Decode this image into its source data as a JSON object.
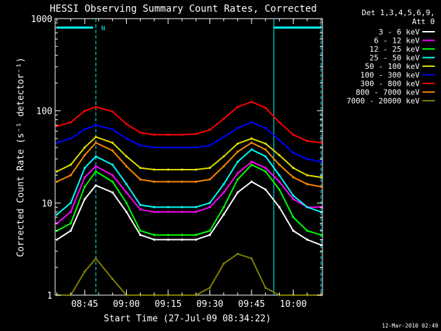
{
  "chart_data": {
    "type": "line",
    "title": "HESSI Observing Summary Count Rates, Corrected",
    "xlabel": "Start Time (27-Jul-09 08:34:22)",
    "ylabel": "Corrected Count Rate (s⁻¹ detector⁻¹)",
    "yscale": "log",
    "ylim": [
      1,
      1000
    ],
    "xlim": [
      "08:34:22",
      "10:10:30"
    ],
    "xtick_labels": [
      "08:45",
      "09:00",
      "09:15",
      "09:30",
      "09:45",
      "10:00"
    ],
    "ytick_labels": [
      "1",
      "10",
      "100",
      "1000"
    ],
    "legend_title": [
      "Det 1,3,4,5,6,9,",
      "Att 0"
    ],
    "legend_position": "right",
    "x": [
      "08:35",
      "08:40",
      "08:45",
      "08:49",
      "08:55",
      "09:00",
      "09:05",
      "09:10",
      "09:15",
      "09:20",
      "09:25",
      "09:30",
      "09:35",
      "09:40",
      "09:45",
      "09:50",
      "09:55",
      "10:00",
      "10:05",
      "10:10"
    ],
    "series": [
      {
        "name": "3 - 6 keV",
        "color": "#ffffff",
        "values": [
          4,
          5,
          11,
          15.5,
          13,
          8,
          4.5,
          4,
          4,
          4,
          4,
          4.5,
          7.5,
          13,
          17,
          14,
          9,
          5,
          4,
          3.5
        ]
      },
      {
        "name": "6 - 12 keV",
        "color": "#ff00ff",
        "values": [
          6,
          8,
          19,
          25,
          20,
          13,
          8.5,
          8,
          8,
          8,
          8,
          9,
          13,
          21,
          28,
          24,
          17,
          11,
          9,
          9
        ]
      },
      {
        "name": "12 - 25 keV",
        "color": "#00ff00",
        "values": [
          5,
          6,
          15,
          22,
          17,
          10,
          5,
          4.5,
          4.5,
          4.5,
          4.5,
          5,
          9,
          18,
          26,
          22,
          14,
          7,
          5,
          4.5
        ]
      },
      {
        "name": "25 - 50 keV",
        "color": "#00ffff",
        "values": [
          7.5,
          10,
          24,
          32,
          26,
          16,
          9.5,
          9,
          9,
          9,
          9,
          10,
          16,
          28,
          38,
          32,
          20,
          12,
          9,
          8
        ]
      },
      {
        "name": "50 - 100 keV",
        "color": "#e0e000",
        "values": [
          22,
          26,
          40,
          52,
          45,
          32,
          24,
          23,
          23,
          23,
          23,
          24,
          32,
          44,
          50,
          44,
          33,
          24,
          20,
          19
        ]
      },
      {
        "name": "100 - 300 keV",
        "color": "#0000ff",
        "values": [
          45,
          50,
          63,
          70,
          63,
          50,
          42,
          40,
          40,
          40,
          40,
          42,
          52,
          65,
          75,
          65,
          48,
          35,
          30,
          28
        ]
      },
      {
        "name": "300 - 800 keV",
        "color": "#ff0000",
        "values": [
          68,
          75,
          100,
          110,
          98,
          72,
          58,
          55,
          55,
          55,
          56,
          62,
          82,
          110,
          125,
          108,
          75,
          55,
          47,
          45
        ]
      },
      {
        "name": "800 - 7000 keV",
        "color": "#ff8800",
        "values": [
          17,
          20,
          33,
          45,
          37,
          25,
          18,
          17,
          17,
          17,
          17,
          18,
          25,
          36,
          45,
          38,
          26,
          19,
          16,
          15
        ]
      },
      {
        "name": "7000 - 20000 keV",
        "color": "#808000",
        "values": [
          1,
          1,
          1.8,
          2.5,
          1.5,
          1,
          1,
          1,
          1,
          1,
          1,
          1.2,
          2.2,
          2.8,
          2.5,
          1.2,
          1,
          1,
          1,
          1
        ]
      }
    ],
    "markers": {
      "night_flag_label": "N",
      "bar_color": "#00ffff"
    },
    "timestamp": "12-Mar-2010 02:49"
  }
}
